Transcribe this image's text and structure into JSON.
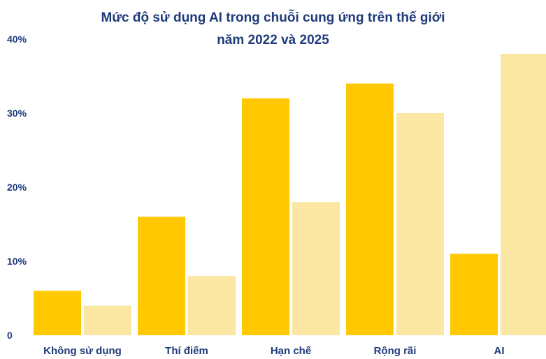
{
  "chart_data": {
    "type": "bar",
    "title_lines": [
      "Mức độ sử dụng AI trong chuỗi cung ứng trên thế giới",
      "năm 2022 và 2025"
    ],
    "categories": [
      "Không sử dụng",
      "Thí điểm",
      "Hạn chế",
      "Rộng rãi",
      "AI"
    ],
    "series": [
      {
        "values": [
          6,
          16,
          32,
          34,
          11
        ],
        "color": "#ffc800"
      },
      {
        "values": [
          4,
          8,
          18,
          30,
          38
        ],
        "color": "#fbe7a3"
      }
    ],
    "y_ticks": [
      {
        "value": 0,
        "label": "0"
      },
      {
        "value": 10,
        "label": "10%"
      },
      {
        "value": 20,
        "label": "20%"
      },
      {
        "value": 30,
        "label": "30%"
      },
      {
        "value": 40,
        "label": "40%"
      }
    ],
    "ylim": [
      0,
      40
    ],
    "grid": false,
    "legend": "none"
  }
}
